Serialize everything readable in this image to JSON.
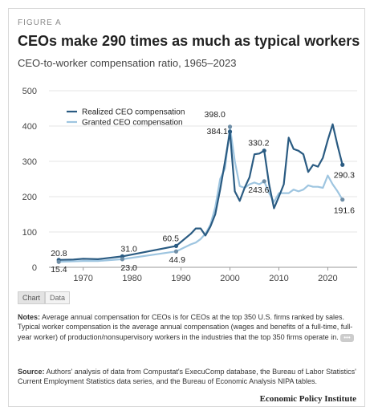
{
  "header": {
    "figure_label": "FIGURE A",
    "title": "CEOs make 290 times as much as typical workers",
    "subtitle": "CEO-to-worker compensation ratio, 1965–2023"
  },
  "chart_data": {
    "type": "line",
    "title": "CEOs make 290 times as much as typical workers",
    "subtitle": "CEO-to-worker compensation ratio, 1965–2023",
    "xlim": [
      1963,
      2026
    ],
    "ylim": [
      0,
      500
    ],
    "y_ticks": [
      0,
      100,
      200,
      300,
      400,
      500
    ],
    "x_ticks": [
      1970,
      1980,
      1990,
      2000,
      2010,
      2020
    ],
    "grid": "horizontal",
    "legend_position": "top-left",
    "colors": {
      "realized": "#2a5b82",
      "granted": "#9ec5e0",
      "gridline": "#e6e6e6",
      "axis": "#999999"
    },
    "series": [
      {
        "name": "Realized CEO compensation",
        "key": "realized",
        "x": [
          1965,
          1968,
          1970,
          1973,
          1978,
          1989,
          1992,
          1993,
          1994,
          1995,
          1996,
          1997,
          1998,
          1999,
          2000,
          2001,
          2002,
          2003,
          2004,
          2005,
          2006,
          2007,
          2008,
          2009,
          2010,
          2011,
          2012,
          2013,
          2014,
          2015,
          2016,
          2017,
          2018,
          2019,
          2020,
          2021,
          2022,
          2023
        ],
        "y": [
          20.8,
          22,
          24,
          23,
          31.0,
          60.5,
          95,
          110,
          110,
          90,
          115,
          150,
          220,
          300,
          384.1,
          215,
          188,
          225,
          255,
          320,
          322,
          330.2,
          235,
          167,
          200,
          235,
          367,
          335,
          330,
          320,
          270,
          290,
          285,
          310,
          360,
          405,
          345,
          290.3
        ]
      },
      {
        "name": "Granted CEO compensation",
        "key": "granted",
        "x": [
          1965,
          1968,
          1970,
          1973,
          1978,
          1989,
          1992,
          1993,
          1994,
          1995,
          1996,
          1997,
          1998,
          1999,
          2000,
          2001,
          2002,
          2003,
          2004,
          2005,
          2006,
          2007,
          2008,
          2009,
          2010,
          2011,
          2012,
          2013,
          2014,
          2015,
          2016,
          2017,
          2018,
          2019,
          2020,
          2021,
          2022,
          2023
        ],
        "y": [
          15.4,
          17,
          18,
          18,
          23.0,
          44.9,
          65,
          70,
          80,
          95,
          120,
          170,
          250,
          280,
          398.0,
          300,
          230,
          225,
          235,
          240,
          235,
          243.6,
          210,
          185,
          210,
          210,
          210,
          220,
          215,
          220,
          232,
          228,
          228,
          225,
          260,
          235,
          215,
          191.6
        ]
      }
    ],
    "annotations": [
      {
        "series": "realized",
        "x": 1965,
        "y": 20.8,
        "label": "20.8"
      },
      {
        "series": "granted",
        "x": 1965,
        "y": 15.4,
        "label": "15.4"
      },
      {
        "series": "realized",
        "x": 1978,
        "y": 31.0,
        "label": "31.0"
      },
      {
        "series": "granted",
        "x": 1978,
        "y": 23.0,
        "label": "23.0"
      },
      {
        "series": "realized",
        "x": 1989,
        "y": 60.5,
        "label": "60.5"
      },
      {
        "series": "granted",
        "x": 1989,
        "y": 44.9,
        "label": "44.9"
      },
      {
        "series": "granted",
        "x": 2000,
        "y": 398.0,
        "label": "398.0"
      },
      {
        "series": "realized",
        "x": 2000,
        "y": 384.1,
        "label": "384.1"
      },
      {
        "series": "realized",
        "x": 2007,
        "y": 330.2,
        "label": "330.2"
      },
      {
        "series": "granted",
        "x": 2007,
        "y": 243.6,
        "label": "243.6"
      },
      {
        "series": "realized",
        "x": 2023,
        "y": 290.3,
        "label": "290.3"
      },
      {
        "series": "granted",
        "x": 2023,
        "y": 191.6,
        "label": "191.6"
      }
    ]
  },
  "tabs": [
    {
      "label": "Chart",
      "active": true
    },
    {
      "label": "Data",
      "active": false
    }
  ],
  "notes": {
    "label": "Notes:",
    "text": "Average annual compensation for CEOs is for CEOs at the top 350 U.S. firms ranked by sales. Typical worker compensation is the average annual compensation (wages and benefits of a full-time, full-year worker) of production/nonsupervisory workers in the industries that the top 350 firms operate in.",
    "more": "•••"
  },
  "source": {
    "label": "Source:",
    "text": "Authors' analysis of data from Compustat's ExecuComp database, the Bureau of Labor Statistics' Current Employment Statistics data series, and the Bureau of Economic Analysis NIPA tables."
  },
  "footer": {
    "brand": "Economic Policy Institute"
  }
}
